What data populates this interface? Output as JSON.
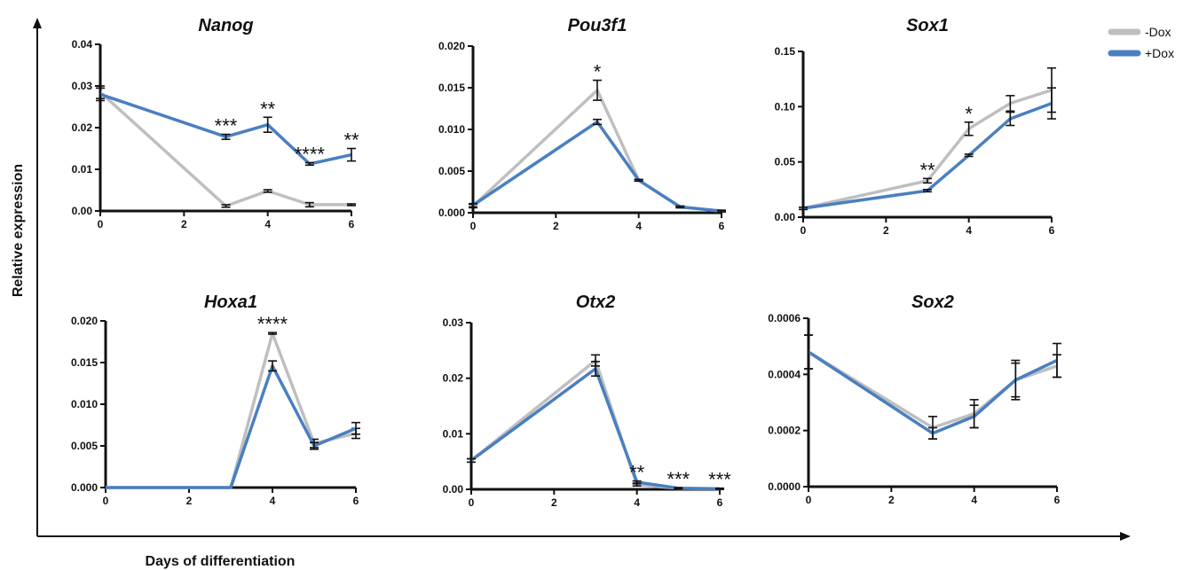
{
  "figure": {
    "global_ylabel": "Relative expression",
    "global_xlabel": "Days of differentiation"
  },
  "legend": [
    {
      "label": "-Dox",
      "color": "#bfbfbf"
    },
    {
      "label": "+Dox",
      "color": "#4a7fc1"
    }
  ],
  "chart_data": [
    {
      "type": "line",
      "title": "Nanog",
      "x_ticks": [
        "0",
        "2",
        "4",
        "6"
      ],
      "y_ticks": [
        "0.00",
        "0.01",
        "0.02",
        "0.03",
        "0.04"
      ],
      "xlim": [
        0,
        6
      ],
      "ylim": [
        0,
        0.04
      ],
      "series": [
        {
          "name": "-Dox",
          "x": [
            0,
            3,
            4,
            5,
            6
          ],
          "y": [
            0.0285,
            0.0012,
            0.0048,
            0.0015,
            0.0015
          ],
          "err": [
            0.0015,
            0.0003,
            0.0003,
            0.0005,
            0.0002
          ]
        },
        {
          "name": "+Dox",
          "x": [
            0,
            3,
            4,
            5,
            6
          ],
          "y": [
            0.028,
            0.0178,
            0.0207,
            0.0113,
            0.0135
          ],
          "err": [
            0.0015,
            0.0006,
            0.0018,
            0.0003,
            0.0015
          ]
        }
      ],
      "annotations": [
        {
          "x": 3,
          "text": "***"
        },
        {
          "x": 4,
          "text": "**"
        },
        {
          "x": 5,
          "text": "****"
        },
        {
          "x": 6,
          "text": "**"
        }
      ]
    },
    {
      "type": "line",
      "title": "Pou3f1",
      "x_ticks": [
        "0",
        "2",
        "4",
        "6"
      ],
      "y_ticks": [
        "0.000",
        "0.005",
        "0.010",
        "0.015",
        "0.020"
      ],
      "xlim": [
        0,
        6
      ],
      "ylim": [
        0,
        0.02
      ],
      "series": [
        {
          "name": "-Dox",
          "x": [
            0,
            3,
            4,
            5,
            6
          ],
          "y": [
            0.0008,
            0.0147,
            0.0039,
            0.0007,
            0.0002
          ],
          "err": [
            0.0002,
            0.0012,
            0.0001,
            0.0001,
            0.0001
          ]
        },
        {
          "name": "+Dox",
          "x": [
            0,
            3,
            4,
            5,
            6
          ],
          "y": [
            0.0009,
            0.0109,
            0.0039,
            0.0007,
            0.0002
          ],
          "err": [
            0.0002,
            0.0003,
            0.0001,
            0.0001,
            0.0001
          ]
        }
      ],
      "annotations": [
        {
          "x": 3,
          "text": "*"
        }
      ]
    },
    {
      "type": "line",
      "title": "Sox1",
      "x_ticks": [
        "0",
        "2",
        "4",
        "6"
      ],
      "y_ticks": [
        "0.00",
        "0.05",
        "0.10",
        "0.15"
      ],
      "xlim": [
        0,
        6
      ],
      "ylim": [
        0,
        0.15
      ],
      "series": [
        {
          "name": "-Dox",
          "x": [
            0,
            3,
            4,
            5,
            6
          ],
          "y": [
            0.008,
            0.033,
            0.08,
            0.103,
            0.115
          ],
          "err": [
            0.001,
            0.002,
            0.006,
            0.007,
            0.02
          ]
        },
        {
          "name": "+Dox",
          "x": [
            0,
            3,
            4,
            5,
            6
          ],
          "y": [
            0.008,
            0.024,
            0.056,
            0.089,
            0.103
          ],
          "err": [
            0.001,
            0.001,
            0.001,
            0.006,
            0.014
          ]
        }
      ],
      "annotations": [
        {
          "x": 3,
          "text": "**"
        },
        {
          "x": 4,
          "text": "*"
        }
      ]
    },
    {
      "type": "line",
      "title": "Hoxa1",
      "x_ticks": [
        "0",
        "2",
        "4",
        "6"
      ],
      "y_ticks": [
        "0.000",
        "0.005",
        "0.010",
        "0.015",
        "0.020"
      ],
      "xlim": [
        0,
        6
      ],
      "ylim": [
        0,
        0.02
      ],
      "series": [
        {
          "name": "-Dox",
          "x": [
            0,
            3,
            4,
            5,
            6
          ],
          "y": [
            0.0,
            0.0,
            0.0185,
            0.0053,
            0.0065
          ],
          "err": [
            0,
            0,
            0.0001,
            0.0005,
            0.0006
          ]
        },
        {
          "name": "+Dox",
          "x": [
            0,
            3,
            4,
            5,
            6
          ],
          "y": [
            0.0,
            0.0,
            0.0146,
            0.005,
            0.0071
          ],
          "err": [
            0,
            0,
            0.0006,
            0.0004,
            0.0007
          ]
        }
      ],
      "annotations": [
        {
          "x": 4,
          "text": "****"
        }
      ]
    },
    {
      "type": "line",
      "title": "Otx2",
      "x_ticks": [
        "0",
        "2",
        "4",
        "6"
      ],
      "y_ticks": [
        "0.00",
        "0.01",
        "0.02",
        "0.03"
      ],
      "xlim": [
        0,
        6
      ],
      "ylim": [
        0,
        0.03
      ],
      "series": [
        {
          "name": "-Dox",
          "x": [
            0,
            3,
            4,
            5,
            6
          ],
          "y": [
            0.0052,
            0.0232,
            0.0008,
            0.0002,
            0.0001
          ],
          "err": [
            0.0003,
            0.001,
            0.0002,
            0.0001,
            0.0001
          ]
        },
        {
          "name": "+Dox",
          "x": [
            0,
            3,
            4,
            5,
            6
          ],
          "y": [
            0.0052,
            0.0217,
            0.0013,
            0.0002,
            0.0001
          ],
          "err": [
            0.0003,
            0.0013,
            0.0002,
            0.0001,
            0.0001
          ]
        }
      ],
      "annotations": [
        {
          "x": 4,
          "text": "**"
        },
        {
          "x": 5,
          "text": "***"
        },
        {
          "x": 6,
          "text": "***"
        }
      ]
    },
    {
      "type": "line",
      "title": "Sox2",
      "x_ticks": [
        "0",
        "2",
        "4",
        "6"
      ],
      "y_ticks": [
        "0.0000",
        "0.0002",
        "0.0004",
        "0.0006"
      ],
      "xlim": [
        0,
        6
      ],
      "ylim": [
        0,
        0.0006
      ],
      "series": [
        {
          "name": "-Dox",
          "x": [
            0,
            3,
            4,
            5,
            6
          ],
          "y": [
            0.00048,
            0.00021,
            0.00026,
            0.00038,
            0.00043
          ],
          "err": [
            6e-05,
            4e-05,
            5e-05,
            6e-05,
            4e-05
          ]
        },
        {
          "name": "+Dox",
          "x": [
            0,
            3,
            4,
            5,
            6
          ],
          "y": [
            0.00048,
            0.00019,
            0.00025,
            0.00038,
            0.00045
          ],
          "err": [
            6e-05,
            2e-05,
            4e-05,
            7e-05,
            6e-05
          ]
        }
      ],
      "annotations": []
    }
  ]
}
